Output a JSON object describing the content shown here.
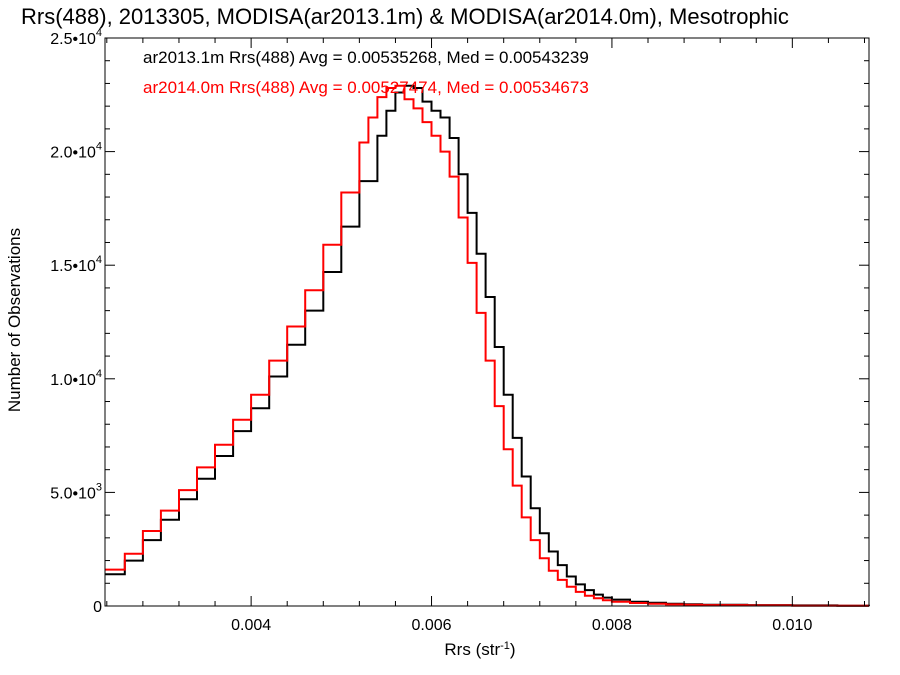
{
  "chart_data": {
    "type": "line",
    "title": "Rrs(488), 2013305, MODISA(ar2013.1m) & MODISA(ar2014.0m), Mesotrophic",
    "xlabel": "Rrs (str",
    "xlabel_sup": "-1",
    "xlabel_end": ")",
    "ylabel": "Number of Observations",
    "xlim": [
      0.00238,
      0.01085
    ],
    "ylim": [
      0,
      25000
    ],
    "grid": false,
    "step": true,
    "x_ticks": [
      {
        "value": 0.004,
        "label": "0.004"
      },
      {
        "value": 0.006,
        "label": "0.006"
      },
      {
        "value": 0.008,
        "label": "0.008"
      },
      {
        "value": 0.01,
        "label": "0.010"
      }
    ],
    "y_ticks": [
      {
        "value": 0,
        "mant": "0",
        "exp": ""
      },
      {
        "value": 5000,
        "mant": "5.0•10",
        "exp": "3"
      },
      {
        "value": 10000,
        "mant": "1.0•10",
        "exp": "4"
      },
      {
        "value": 15000,
        "mant": "1.5•10",
        "exp": "4"
      },
      {
        "value": 20000,
        "mant": "2.0•10",
        "exp": "4"
      },
      {
        "value": 25000,
        "mant": "2.5•10",
        "exp": "4"
      }
    ],
    "legend": [
      {
        "text": "ar2013.1m Rrs(488) Avg = 0.00535268, Med = 0.00543239",
        "color": "#000000"
      },
      {
        "text": "ar2014.0m Rrs(488) Avg = 0.00527474, Med = 0.00534673",
        "color": "#ff0000"
      }
    ],
    "legend_placement": "top-left",
    "series": [
      {
        "color": "#000000",
        "x": [
          0.00238,
          0.0026,
          0.0028,
          0.003,
          0.0032,
          0.0034,
          0.0036,
          0.0038,
          0.004,
          0.0042,
          0.0044,
          0.0046,
          0.0048,
          0.005,
          0.0052,
          0.0054,
          0.0055,
          0.0056,
          0.0057,
          0.0058,
          0.0059,
          0.006,
          0.0061,
          0.0062,
          0.0063,
          0.0064,
          0.0065,
          0.0066,
          0.0067,
          0.0068,
          0.0069,
          0.007,
          0.0071,
          0.0072,
          0.0073,
          0.0074,
          0.0075,
          0.0076,
          0.0077,
          0.0078,
          0.0079,
          0.008,
          0.0082,
          0.0084,
          0.0086,
          0.0088,
          0.009,
          0.0095,
          0.01,
          0.0105,
          0.01085
        ],
        "y": [
          1400,
          2000,
          2900,
          3800,
          4700,
          5600,
          6600,
          7700,
          8700,
          10100,
          11500,
          13000,
          14700,
          16700,
          18700,
          20700,
          21800,
          22600,
          22900,
          22800,
          22200,
          21800,
          21500,
          20600,
          19000,
          17300,
          15500,
          13600,
          11400,
          9300,
          7400,
          5700,
          4300,
          3200,
          2400,
          1800,
          1300,
          950,
          700,
          500,
          370,
          280,
          190,
          140,
          100,
          75,
          55,
          40,
          25,
          15,
          10
        ]
      },
      {
        "color": "#ff0000",
        "x": [
          0.00238,
          0.0026,
          0.0028,
          0.003,
          0.0032,
          0.0034,
          0.0036,
          0.0038,
          0.004,
          0.0042,
          0.0044,
          0.0046,
          0.0048,
          0.005,
          0.0052,
          0.0053,
          0.0054,
          0.0055,
          0.0056,
          0.0057,
          0.0058,
          0.0059,
          0.006,
          0.0061,
          0.0062,
          0.0063,
          0.0064,
          0.0065,
          0.0066,
          0.0067,
          0.0068,
          0.0069,
          0.007,
          0.0071,
          0.0072,
          0.0073,
          0.0074,
          0.0075,
          0.0076,
          0.0077,
          0.0078,
          0.0079,
          0.008,
          0.0082,
          0.0084,
          0.0086,
          0.0088,
          0.009,
          0.0095,
          0.01,
          0.0105,
          0.01085
        ],
        "y": [
          1600,
          2300,
          3300,
          4200,
          5100,
          6100,
          7100,
          8200,
          9300,
          10800,
          12300,
          13900,
          15900,
          18200,
          20400,
          21500,
          22400,
          22800,
          22900,
          22300,
          21900,
          21300,
          20700,
          20000,
          18900,
          17100,
          15100,
          12900,
          10800,
          8800,
          6900,
          5300,
          3900,
          2900,
          2100,
          1550,
          1150,
          850,
          620,
          450,
          340,
          250,
          190,
          130,
          95,
          70,
          52,
          38,
          25,
          15,
          10,
          8
        ]
      }
    ]
  }
}
